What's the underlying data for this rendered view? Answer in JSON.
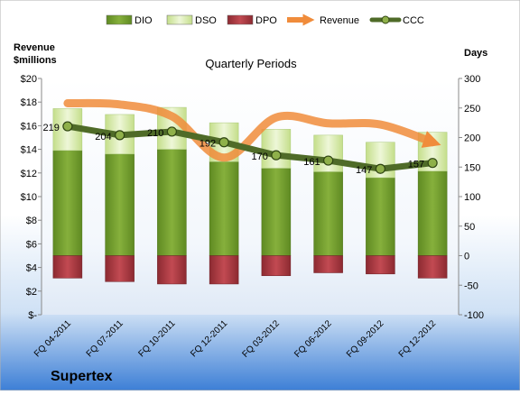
{
  "chart_data": {
    "type": "bar",
    "title": "Quarterly Periods",
    "company": "Supertex",
    "left_axis_title_line1": "Revenue",
    "left_axis_title_line2": "$millions",
    "right_axis_title": "Days",
    "left_ylim": [
      0,
      20
    ],
    "left_ticks": [
      "$-",
      "$2",
      "$4",
      "$6",
      "$8",
      "$10",
      "$12",
      "$14",
      "$16",
      "$18",
      "$20"
    ],
    "right_ylim": [
      -100,
      300
    ],
    "right_ticks": [
      "-100",
      "-50",
      "0",
      "50",
      "100",
      "150",
      "200",
      "250",
      "300"
    ],
    "grid": false,
    "legend_position": "top",
    "categories": [
      "FQ 04-2011",
      "FQ 07-2011",
      "FQ 10-2011",
      "FQ 12-2011",
      "FQ 03-2012",
      "FQ 06-2012",
      "FQ 09-2012",
      "FQ 12-2012"
    ],
    "series": [
      {
        "name": "DIO",
        "type": "stacked-bar",
        "axis": "right",
        "color": "#6f9a2b",
        "values": [
          178,
          172,
          180,
          159,
          148,
          142,
          132,
          143
        ]
      },
      {
        "name": "DSO",
        "type": "stacked-bar",
        "axis": "right",
        "color": "#d6e9a8",
        "values": [
          71,
          67,
          71,
          66,
          66,
          62,
          60,
          66
        ]
      },
      {
        "name": "DPO",
        "type": "bar-negative",
        "axis": "right",
        "color": "#a6383f",
        "values": [
          -38,
          -44,
          -48,
          -48,
          -34,
          -29,
          -31,
          -38
        ]
      },
      {
        "name": "Revenue",
        "type": "line",
        "axis": "left",
        "color": "#f08c3b",
        "values": [
          17.9,
          17.8,
          16.8,
          13.3,
          16.7,
          16.2,
          16.1,
          14.6
        ]
      },
      {
        "name": "CCC",
        "type": "line",
        "axis": "right",
        "color": "#4f6b28",
        "values": [
          219,
          204,
          210,
          192,
          170,
          161,
          147,
          157
        ],
        "labels": [
          "219",
          "204",
          "210",
          "192",
          "170",
          "161",
          "147",
          "157"
        ]
      }
    ]
  }
}
